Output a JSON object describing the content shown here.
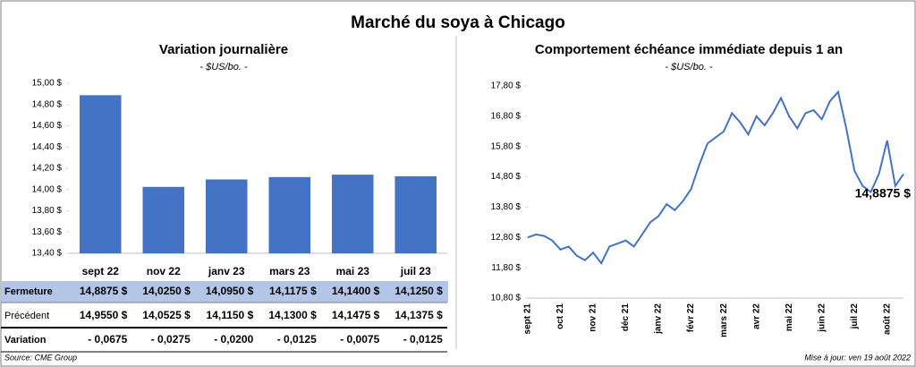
{
  "title": "Marché du soya à Chicago",
  "source": "Source: CME Group",
  "updated": "Mise à jour: ven 19 août 2022",
  "chart_data": [
    {
      "type": "bar",
      "title": "Variation journalière",
      "subtitle": "- $US/bo. -",
      "categories": [
        "sept 22",
        "nov 22",
        "janv 23",
        "mars 23",
        "mai 23",
        "juil 23"
      ],
      "values": [
        14.8875,
        14.025,
        14.095,
        14.1175,
        14.14,
        14.125
      ],
      "value_labels": [
        "14,8875 $",
        "14,0250 $",
        "14,0950 $",
        "14,1175 $",
        "14,1400 $",
        "14,1250 $"
      ],
      "color": "#4472c4",
      "grid": false,
      "ylim": [
        13.4,
        15.0
      ],
      "yticks": [
        {
          "value": 13.4,
          "label": "13,40 $"
        },
        {
          "value": 13.6,
          "label": "13,60 $"
        },
        {
          "value": 13.8,
          "label": "13,80 $"
        },
        {
          "value": 14.0,
          "label": "14,00 $"
        },
        {
          "value": 14.2,
          "label": "14,20 $"
        },
        {
          "value": 14.4,
          "label": "14,40 $"
        },
        {
          "value": 14.6,
          "label": "14,60 $"
        },
        {
          "value": 14.8,
          "label": "14,80 $"
        },
        {
          "value": 15.0,
          "label": "15,00 $"
        }
      ]
    },
    {
      "type": "line",
      "title": "Comportement échéance immédiate depuis 1 an",
      "subtitle": "- $US/bo. -",
      "categories": [
        "sept 21",
        null,
        null,
        null,
        "oct 21",
        null,
        null,
        null,
        "nov 21",
        null,
        null,
        null,
        "déc 21",
        null,
        null,
        null,
        "janv 22",
        null,
        null,
        null,
        "févr 22",
        null,
        null,
        null,
        "mars 22",
        null,
        null,
        null,
        "avr 22",
        null,
        null,
        null,
        "mai 22",
        null,
        null,
        null,
        "juin 22",
        null,
        null,
        null,
        "juil 22",
        null,
        null,
        null,
        "août 22",
        null,
        null
      ],
      "series": [
        {
          "name": "Soya",
          "color": "#4472c4",
          "values": [
            12.8,
            12.9,
            12.85,
            12.7,
            12.4,
            12.5,
            12.2,
            12.05,
            12.3,
            11.95,
            12.5,
            12.6,
            12.7,
            12.5,
            12.9,
            13.3,
            13.5,
            13.9,
            13.7,
            14.0,
            14.4,
            15.2,
            15.9,
            16.1,
            16.3,
            16.9,
            16.6,
            16.2,
            16.8,
            16.5,
            16.9,
            17.4,
            16.8,
            16.4,
            16.9,
            17.0,
            16.7,
            17.3,
            17.6,
            16.4,
            15.0,
            14.5,
            14.3,
            14.9,
            16.0,
            14.5,
            14.8875
          ]
        }
      ],
      "annotation": "14,8875 $",
      "grid": false,
      "ylim": [
        10.8,
        17.8
      ],
      "yticks": [
        {
          "value": 10.8,
          "label": "10,80 $"
        },
        {
          "value": 11.8,
          "label": "11,80 $"
        },
        {
          "value": 12.8,
          "label": "12,80 $"
        },
        {
          "value": 13.8,
          "label": "13,80 $"
        },
        {
          "value": 14.8,
          "label": "14,80 $"
        },
        {
          "value": 15.8,
          "label": "15,80 $"
        },
        {
          "value": 16.8,
          "label": "16,80 $"
        },
        {
          "value": 17.8,
          "label": "17,80 $"
        }
      ]
    }
  ],
  "table": {
    "rows": [
      {
        "label": "Fermeture"
      },
      {
        "label": "Précédent",
        "cells": [
          "14,9550 $",
          "14,0525 $",
          "14,1150 $",
          "14,1300 $",
          "14,1475 $",
          "14,1375 $"
        ]
      },
      {
        "label": "Variation",
        "cells": [
          "- 0,0675",
          "- 0,0275",
          "- 0,0200",
          "- 0,0125",
          "- 0,0075",
          "- 0,0125"
        ]
      }
    ]
  }
}
